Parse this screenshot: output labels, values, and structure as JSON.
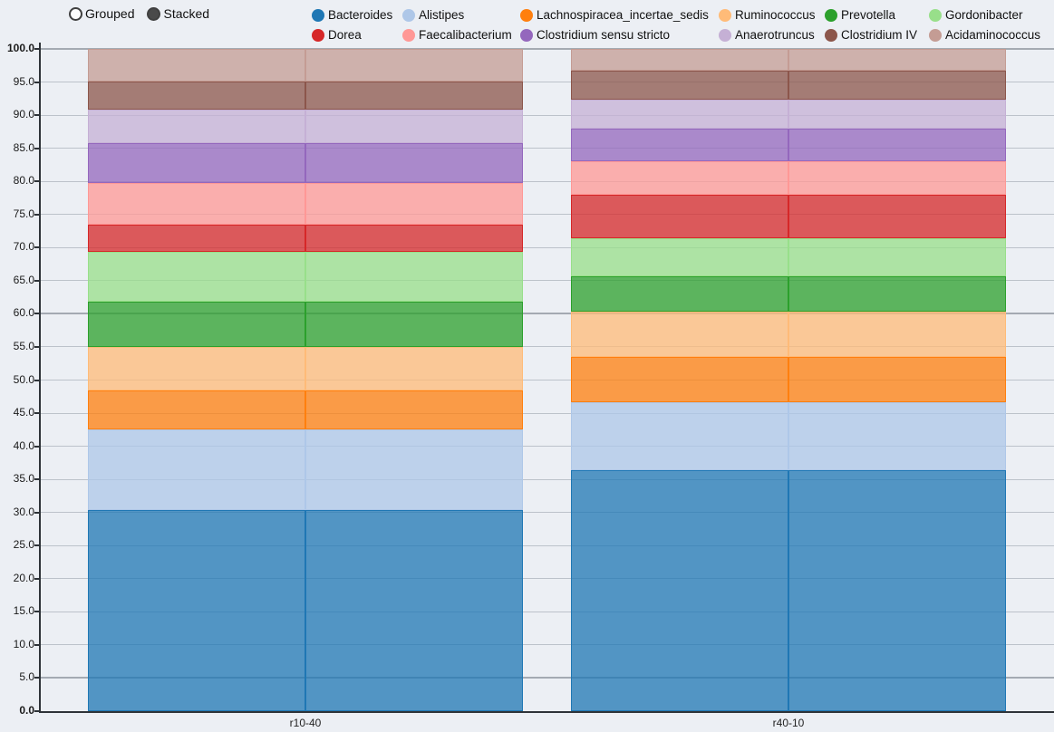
{
  "controls": {
    "grouped_label": "Grouped",
    "stacked_label": "Stacked",
    "selected_mode": "Stacked"
  },
  "chart_data": {
    "type": "bar",
    "bar_mode": "stacked",
    "title": "",
    "xlabel": "",
    "ylabel": "",
    "categories": [
      "r10-40",
      "r40-10"
    ],
    "series": [
      {
        "name": "Bacteroides",
        "color": "#1f77b4",
        "values": [
          30.4,
          36.4
        ]
      },
      {
        "name": "Alistipes",
        "color": "#aec7e8",
        "values": [
          12.1,
          10.2
        ]
      },
      {
        "name": "Lachnospiracea_incertae_sedis",
        "color": "#ff7f0e",
        "values": [
          5.9,
          6.9
        ]
      },
      {
        "name": "Ruminococcus",
        "color": "#ffbb78",
        "values": [
          6.6,
          6.8
        ]
      },
      {
        "name": "Prevotella",
        "color": "#2ca02c",
        "values": [
          6.9,
          5.4
        ]
      },
      {
        "name": "Gordonibacter",
        "color": "#98df8a",
        "values": [
          7.4,
          5.7
        ]
      },
      {
        "name": "Dorea",
        "color": "#d62728",
        "values": [
          4.2,
          6.6
        ]
      },
      {
        "name": "Faecalibacterium",
        "color": "#ff9896",
        "values": [
          6.2,
          5.1
        ]
      },
      {
        "name": "Clostridium sensu stricto",
        "color": "#9467bd",
        "values": [
          6.1,
          4.8
        ]
      },
      {
        "name": "Anaerotruncus",
        "color": "#c5b0d5",
        "values": [
          5.0,
          4.5
        ]
      },
      {
        "name": "Clostridium IV",
        "color": "#8c564b",
        "values": [
          4.3,
          4.3
        ]
      },
      {
        "name": "Acidaminococcus",
        "color": "#c49c94",
        "values": [
          4.9,
          3.3
        ]
      }
    ],
    "ylim": [
      0,
      100
    ],
    "ytick_step": 5,
    "ytick_labels": [
      "0.0",
      "5.0",
      "10.0",
      "15.0",
      "20.0",
      "25.0",
      "30.0",
      "35.0",
      "40.0",
      "45.0",
      "50.0",
      "55.0",
      "60.0",
      "65.0",
      "70.0",
      "75.0",
      "80.0",
      "85.0",
      "90.0",
      "95.0",
      "100.0"
    ],
    "ytick_bold": [
      "0.0",
      "100.0"
    ],
    "emphasized_gridlines": [
      100,
      60,
      5
    ],
    "grid": true,
    "legend_position": "top",
    "bar_fill_opacity": 0.75
  },
  "colors": {
    "background": "#eceff4",
    "axis": "#2e3338",
    "gridline": "#bcc2ca",
    "gridline_emphasis": "#a4aab2",
    "radio_selected_fill": "#4a4a4a",
    "text": "#1a1a1a"
  }
}
